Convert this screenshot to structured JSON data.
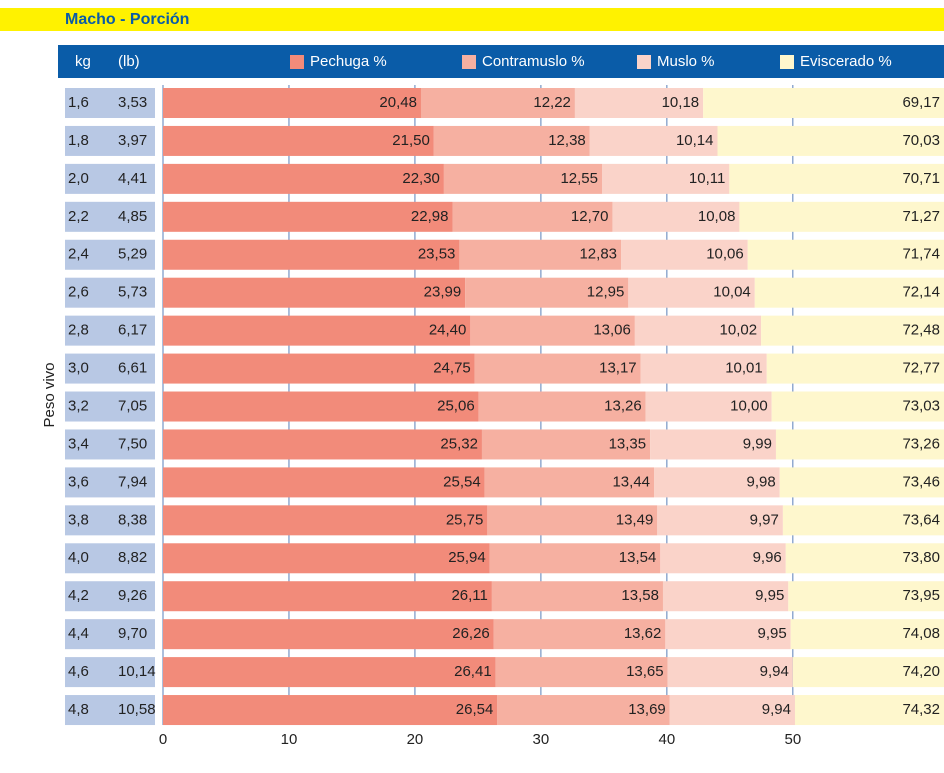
{
  "chart_data": {
    "type": "bar",
    "title": "Macho - Porción",
    "y_label": "Peso vivo",
    "kg_header": "kg",
    "lb_header": "(lb)",
    "categories": [
      "1,6",
      "1,8",
      "2,0",
      "2,2",
      "2,4",
      "2,6",
      "2,8",
      "3,0",
      "3,2",
      "3,4",
      "3,6",
      "3,8",
      "4,0",
      "4,2",
      "4,4",
      "4,6",
      "4,8"
    ],
    "categories_lb": [
      "3,53",
      "3,97",
      "4,41",
      "4,85",
      "5,29",
      "5,73",
      "6,17",
      "6,61",
      "7,05",
      "7,50",
      "7,94",
      "8,38",
      "8,82",
      "9,26",
      "9,70",
      "10,14",
      "10,58"
    ],
    "series": [
      {
        "name": "Pechuga %",
        "color": "#f28b7a",
        "values": [
          20.48,
          21.5,
          22.3,
          22.98,
          23.53,
          23.99,
          24.4,
          24.75,
          25.06,
          25.32,
          25.54,
          25.75,
          25.94,
          26.11,
          26.26,
          26.41,
          26.54
        ],
        "value_labels": [
          "20,48",
          "21,50",
          "22,30",
          "22,98",
          "23,53",
          "23,99",
          "24,40",
          "24,75",
          "25,06",
          "25,32",
          "25,54",
          "25,75",
          "25,94",
          "26,11",
          "26,26",
          "26,41",
          "26,54"
        ]
      },
      {
        "name": "Contramuslo %",
        "color": "#f6b0a1",
        "values": [
          12.22,
          12.38,
          12.55,
          12.7,
          12.83,
          12.95,
          13.06,
          13.17,
          13.26,
          13.35,
          13.44,
          13.49,
          13.54,
          13.58,
          13.62,
          13.65,
          13.69
        ],
        "value_labels": [
          "12,22",
          "12,38",
          "12,55",
          "12,70",
          "12,83",
          "12,95",
          "13,06",
          "13,17",
          "13,26",
          "13,35",
          "13,44",
          "13,49",
          "13,54",
          "13,58",
          "13,62",
          "13,65",
          "13,69"
        ]
      },
      {
        "name": "Muslo %",
        "color": "#fad3c9",
        "values": [
          10.18,
          10.14,
          10.11,
          10.08,
          10.06,
          10.04,
          10.02,
          10.01,
          10.0,
          9.99,
          9.98,
          9.97,
          9.96,
          9.95,
          9.95,
          9.94,
          9.94
        ],
        "value_labels": [
          "10,18",
          "10,14",
          "10,11",
          "10,08",
          "10,06",
          "10,04",
          "10,02",
          "10,01",
          "10,00",
          "9,99",
          "9,98",
          "9,97",
          "9,96",
          "9,95",
          "9,95",
          "9,94",
          "9,94"
        ]
      },
      {
        "name": "Eviscerado %",
        "color": "#fef7cd",
        "values": [
          69.17,
          70.03,
          70.71,
          71.27,
          71.74,
          72.14,
          72.48,
          72.77,
          73.03,
          73.26,
          73.46,
          73.64,
          73.8,
          73.95,
          74.08,
          74.2,
          74.32
        ],
        "value_labels": [
          "69,17",
          "70,03",
          "70,71",
          "71,27",
          "71,74",
          "72,14",
          "72,48",
          "72,77",
          "73,03",
          "73,26",
          "73,46",
          "73,64",
          "73,80",
          "73,95",
          "74,08",
          "74,20",
          "74,32"
        ]
      }
    ],
    "xlim": [
      0,
      62
    ],
    "xticks": [
      0,
      10,
      20,
      30,
      40,
      50
    ]
  }
}
